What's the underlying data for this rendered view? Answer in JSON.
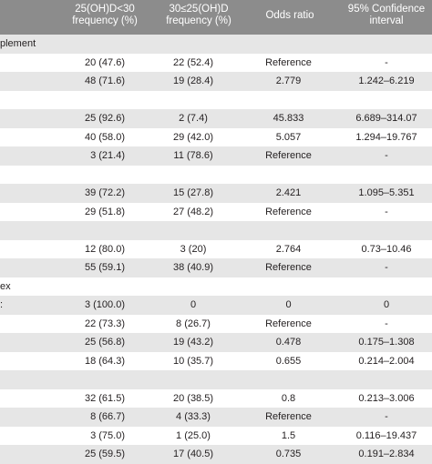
{
  "header": {
    "col1": [
      "25(OH)D<30",
      "frequency (%)"
    ],
    "col2": [
      "30≤25(OH)D",
      "frequency (%)"
    ],
    "col3": "Odds ratio",
    "col4": [
      "95% Confidence",
      "interval"
    ]
  },
  "rows": [
    {
      "label": "plement",
      "c1": "",
      "c2": "",
      "c3": "",
      "c4": "",
      "shaded": true
    },
    {
      "label": "",
      "c1": "20 (47.6)",
      "c2": "22 (52.4)",
      "c3": "Reference",
      "c4": "-",
      "shaded": false
    },
    {
      "label": "",
      "c1": "48 (71.6)",
      "c2": "19 (28.4)",
      "c3": "2.779",
      "c4": "1.242–6.219",
      "shaded": true
    },
    {
      "label": "",
      "c1": "",
      "c2": "",
      "c3": "",
      "c4": "",
      "shaded": false
    },
    {
      "label": "",
      "c1": "25 (92.6)",
      "c2": "2 (7.4)",
      "c3": "45.833",
      "c4": "6.689–314.07",
      "shaded": true
    },
    {
      "label": "",
      "c1": "40 (58.0)",
      "c2": "29 (42.0)",
      "c3": "5.057",
      "c4": "1.294–19.767",
      "shaded": false
    },
    {
      "label": "",
      "c1": "3 (21.4)",
      "c2": "11 (78.6)",
      "c3": "Reference",
      "c4": "-",
      "shaded": true
    },
    {
      "label": "",
      "c1": "",
      "c2": "",
      "c3": "",
      "c4": "",
      "shaded": false
    },
    {
      "label": "",
      "c1": "39 (72.2)",
      "c2": "15 (27.8)",
      "c3": "2.421",
      "c4": "1.095–5.351",
      "shaded": true
    },
    {
      "label": "",
      "c1": "29 (51.8)",
      "c2": "27 (48.2)",
      "c3": "Reference",
      "c4": "-",
      "shaded": false
    },
    {
      "label": "",
      "c1": "",
      "c2": "",
      "c3": "",
      "c4": "",
      "shaded": true
    },
    {
      "label": "",
      "c1": "12 (80.0)",
      "c2": "3 (20)",
      "c3": "2.764",
      "c4": "0.73–10.46",
      "shaded": false
    },
    {
      "label": "",
      "c1": "55 (59.1)",
      "c2": "38 (40.9)",
      "c3": "Reference",
      "c4": "-",
      "shaded": true
    },
    {
      "label": "ex",
      "c1": "",
      "c2": "",
      "c3": "",
      "c4": "",
      "shaded": false
    },
    {
      "label": ":",
      "c1": "3 (100.0)",
      "c2": "0",
      "c3": "0",
      "c4": "0",
      "shaded": true
    },
    {
      "label": "",
      "c1": "22 (73.3)",
      "c2": "8 (26.7)",
      "c3": "Reference",
      "c4": "-",
      "shaded": false
    },
    {
      "label": "",
      "c1": "25 (56.8)",
      "c2": "19 (43.2)",
      "c3": "0.478",
      "c4": "0.175–1.308",
      "shaded": true
    },
    {
      "label": "",
      "c1": "18 (64.3)",
      "c2": "10 (35.7)",
      "c3": "0.655",
      "c4": "0.214–2.004",
      "shaded": false
    },
    {
      "label": "",
      "c1": "",
      "c2": "",
      "c3": "",
      "c4": "",
      "shaded": true
    },
    {
      "label": "",
      "c1": "32 (61.5)",
      "c2": "20 (38.5)",
      "c3": "0.8",
      "c4": "0.213–3.006",
      "shaded": false
    },
    {
      "label": "",
      "c1": "8 (66.7)",
      "c2": "4 (33.3)",
      "c3": "Reference",
      "c4": "-",
      "shaded": true
    },
    {
      "label": "",
      "c1": "3 (75.0)",
      "c2": "1 (25.0)",
      "c3": "1.5",
      "c4": "0.116–19.437",
      "shaded": false
    },
    {
      "label": "",
      "c1": "25 (59.5)",
      "c2": "17 (40.5)",
      "c3": "0.735",
      "c4": "0.191–2.834",
      "shaded": true
    }
  ]
}
